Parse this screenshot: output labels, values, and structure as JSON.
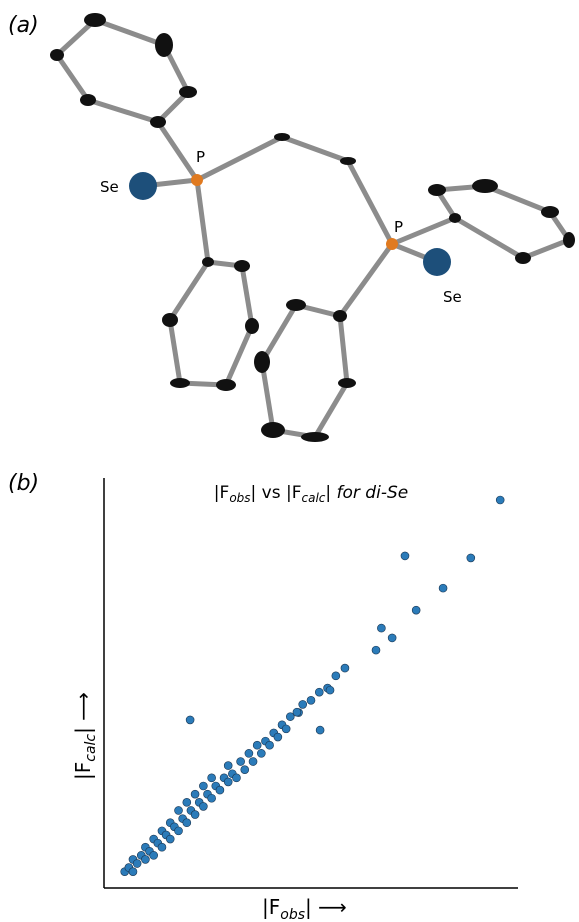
{
  "panel_labels": [
    "(a)",
    "(b)"
  ],
  "molecule": {
    "labels": [
      "P",
      "Se",
      "P",
      "Se"
    ]
  },
  "chart_data": {
    "type": "scatter",
    "title": [
      "|F",
      "obs",
      "| vs |F",
      "calc",
      "| for di-Se"
    ],
    "x_label": [
      "|F",
      "obs",
      "| ⟶"
    ],
    "y_label": [
      "|F",
      "calc",
      "| ⟶"
    ],
    "color": "#2b7bb9",
    "xlim": [
      0,
      100
    ],
    "ylim": [
      0,
      100
    ],
    "x": [
      5,
      6,
      7,
      7,
      8,
      9,
      10,
      10,
      11,
      12,
      12,
      13,
      14,
      14,
      15,
      16,
      16,
      17,
      18,
      18,
      19,
      20,
      20,
      21,
      22,
      22,
      23,
      24,
      24,
      25,
      26,
      26,
      27,
      28,
      29,
      30,
      30,
      31,
      32,
      33,
      34,
      35,
      36,
      37,
      38,
      39,
      40,
      41,
      42,
      43,
      44,
      45,
      47,
      48,
      50,
      52,
      54,
      56,
      20.8,
      46.6,
      52.2,
      54.6,
      58.2,
      65.7,
      67,
      69.6,
      75.4,
      81.9,
      72.7,
      88.6,
      95.7
    ],
    "y": [
      4,
      5,
      4,
      7,
      6,
      8,
      7,
      10,
      9,
      8,
      12,
      11,
      10,
      14,
      13,
      12,
      16,
      15,
      14,
      19,
      17,
      16,
      21,
      19,
      18,
      23,
      21,
      20,
      25,
      23,
      22,
      27,
      25,
      24,
      27,
      26,
      30,
      28,
      27,
      31,
      29,
      33,
      31,
      35,
      33,
      36,
      35,
      38,
      37,
      40,
      39,
      42,
      43,
      45,
      46,
      48,
      49,
      52,
      41.2,
      43.1,
      38.7,
      48.5,
      53.9,
      58.3,
      63.7,
      61.3,
      68.1,
      73.5,
      81.4,
      80.9,
      95.1
    ]
  }
}
